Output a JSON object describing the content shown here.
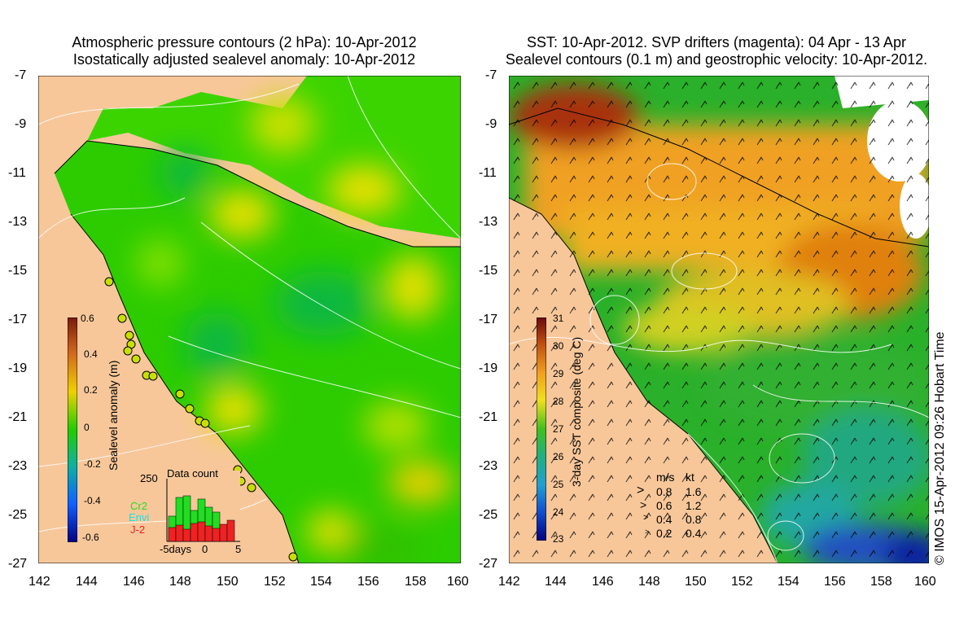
{
  "left": {
    "title_line1": "Atmospheric pressure contours (2 hPa): 10-Apr-2012",
    "title_line2": "Isostatically adjusted sealevel anomaly: 10-Apr-2012",
    "colorbar_title": "Sealevel anomaly (m)",
    "colorbar_ticks": [
      "0.6",
      "0.4",
      "0.2",
      "0",
      "-0.2",
      "-0.4",
      "-0.6"
    ],
    "inset": {
      "title": "Data count",
      "ymax": "250",
      "legend": [
        {
          "name": "Cr2",
          "color": "#22dd22"
        },
        {
          "name": "Envi",
          "color": "#22dddd"
        },
        {
          "name": "J-2",
          "color": "#ee2222"
        }
      ],
      "xlabels": [
        "-5days",
        "0",
        "5"
      ]
    }
  },
  "right": {
    "title_line1": "SST: 10-Apr-2012. SVP drifters (magenta): 04 Apr - 13 Apr",
    "title_line2": "Sealevel contours (0.1 m) and geostrophic velocity: 10-Apr-2012.",
    "colorbar_title": "3-day SST composite (deg C)",
    "colorbar_ticks": [
      "31",
      "30",
      "29",
      "28",
      "27",
      "26",
      "25",
      "24",
      "23"
    ],
    "speed_legend": {
      "header_ms": "m/s",
      "header_kt": "kt",
      "rows": [
        {
          "ms": "0.8",
          "kt": "1.6"
        },
        {
          "ms": "0.6",
          "kt": "1.2"
        },
        {
          "ms": "0.4",
          "kt": "0.8"
        },
        {
          "ms": "0.2",
          "kt": "0.4"
        }
      ]
    }
  },
  "lat_ticks": [
    "-7",
    "-9",
    "-11",
    "-13",
    "-15",
    "-17",
    "-19",
    "-21",
    "-23",
    "-25",
    "-27"
  ],
  "lon_ticks": [
    "142",
    "144",
    "146",
    "148",
    "150",
    "152",
    "154",
    "156",
    "158",
    "160"
  ],
  "credit": "© IMOS 15-Apr-2012 09:26 Hobart Time",
  "colors": {
    "land": "#f7c79a",
    "sla_green": "#22d000",
    "sst_orange": "#f0a020",
    "sst_green": "#22b030"
  }
}
